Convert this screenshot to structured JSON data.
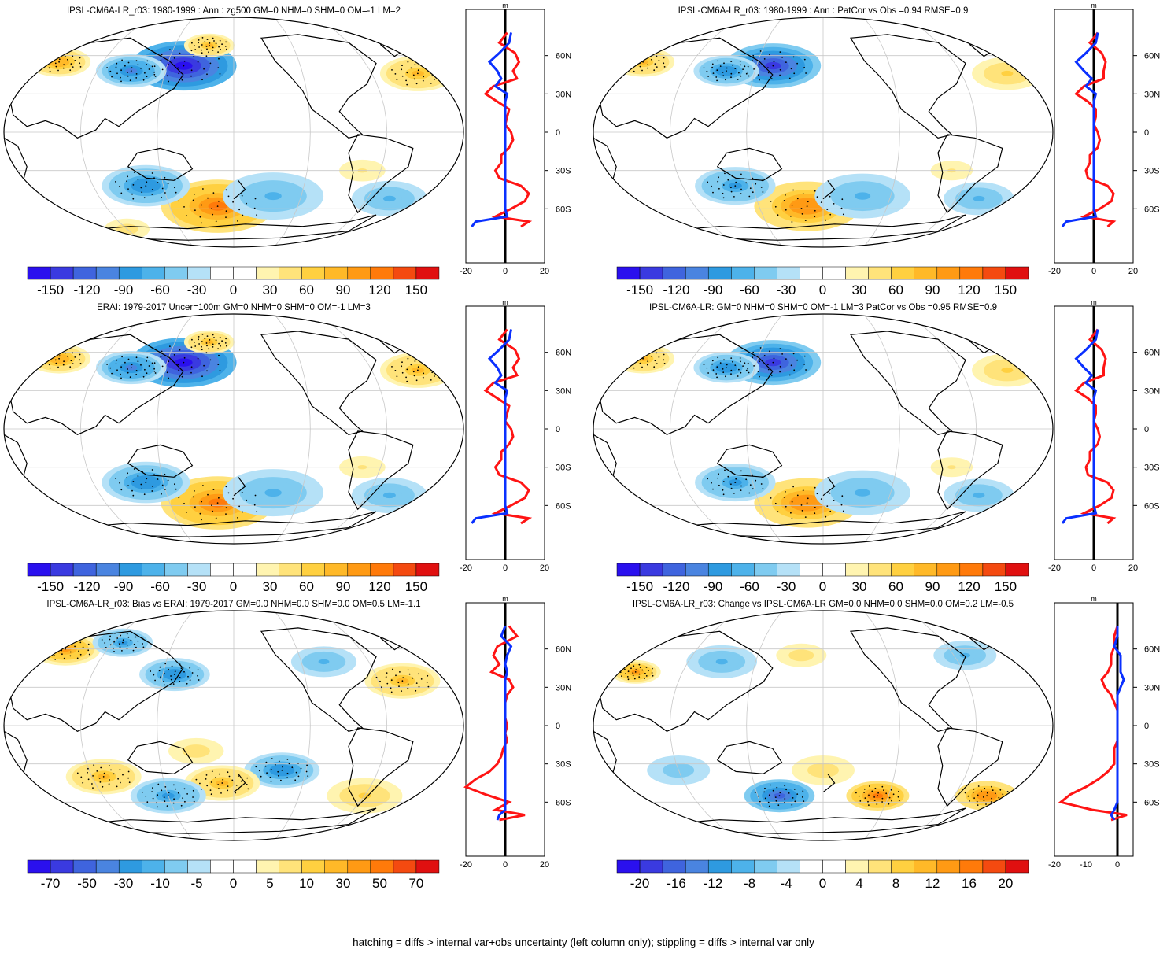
{
  "figure": {
    "footnote": "hatching = diffs > internal var+obs uncertainty (left column only); stippling = diffs > internal var only",
    "colors": {
      "negative": [
        "#2a10ee",
        "#3a3ae0",
        "#3f64de",
        "#4a84e0",
        "#2e9ae0",
        "#4db2ea",
        "#7fcbf0",
        "#b5e1f7"
      ],
      "neutral": "#ffffff",
      "positive": [
        "#fff4b0",
        "#ffe37a",
        "#ffd040",
        "#ffb928",
        "#ff9a14",
        "#ff7a0a",
        "#f44a10",
        "#e01010"
      ],
      "profile_ensemble": "#0a30ff",
      "profile_anomaly": "#ff1414",
      "profile_zero": "#000000"
    }
  },
  "chart_data": [
    {
      "type": "heatmap",
      "panel": "top-left",
      "title": "IPSL-CM6A-LR_r03: 1980-1999 : Ann : zg500 GM=0 NHM=0 SHM=0 OM=-1 LM=2",
      "colorbar_labels": [
        "-150",
        "-120",
        "-90",
        "-60",
        "-30",
        "0",
        "30",
        "60",
        "90",
        "120",
        "150"
      ],
      "colorbar_range": [
        -150,
        150
      ],
      "stippled": true,
      "blobs": [
        [
          -45,
          52,
          42,
          -1.4
        ],
        [
          -90,
          48,
          28,
          -0.8
        ],
        [
          -160,
          55,
          25,
          0.7
        ],
        [
          160,
          46,
          30,
          0.6
        ],
        [
          -25,
          68,
          20,
          0.6
        ],
        [
          -15,
          -58,
          45,
          1.0
        ],
        [
          -75,
          -42,
          35,
          -0.7
        ],
        [
          35,
          -50,
          40,
          -0.5
        ],
        [
          140,
          -52,
          30,
          -0.5
        ],
        [
          105,
          -30,
          22,
          0.3
        ],
        [
          -120,
          -76,
          18,
          0.4
        ]
      ],
      "profile": {
        "unit": "m",
        "xrange": [
          -20,
          20
        ],
        "x_ticks": [
          "-20",
          "0",
          "20"
        ],
        "lat_ticks": [
          "60N",
          "30N",
          "0",
          "30S",
          "60S"
        ],
        "lat": [
          78,
          70,
          62,
          55,
          48,
          42,
          36,
          30,
          24,
          18,
          12,
          6,
          0,
          -6,
          -12,
          -18,
          -24,
          -30,
          -36,
          -42,
          -48,
          -54,
          -60,
          -66,
          -70,
          -74
        ],
        "ensemble": [
          3,
          2,
          -3,
          -8,
          -4,
          -2,
          -5,
          1,
          0,
          0,
          0,
          0,
          0,
          0,
          0,
          0,
          0,
          0,
          0,
          0,
          0,
          0,
          0,
          1,
          -15,
          -17
        ],
        "anomaly": [
          1,
          -3,
          5,
          7,
          4,
          6,
          -6,
          -10,
          -4,
          2,
          1,
          0,
          3,
          4,
          2,
          -2,
          -2,
          -5,
          -3,
          8,
          12,
          10,
          3,
          -5,
          12,
          8
        ]
      }
    },
    {
      "type": "heatmap",
      "panel": "top-right",
      "title": "IPSL-CM6A-LR_r03: 1980-1999 : Ann : PatCor vs Obs =0.94 RMSE=0.9",
      "colorbar_labels": [
        "-150",
        "-120",
        "-90",
        "-60",
        "-30",
        "0",
        "30",
        "60",
        "90",
        "120",
        "150"
      ],
      "colorbar_range": [
        -150,
        150
      ],
      "stippled": true,
      "blobs": [
        [
          -45,
          52,
          38,
          -1.2
        ],
        [
          -85,
          48,
          26,
          -0.7
        ],
        [
          -165,
          55,
          25,
          0.6
        ],
        [
          160,
          46,
          28,
          0.5
        ],
        [
          -15,
          -58,
          42,
          0.9
        ],
        [
          -75,
          -42,
          32,
          -0.6
        ],
        [
          35,
          -50,
          38,
          -0.5
        ],
        [
          140,
          -52,
          28,
          -0.5
        ],
        [
          105,
          -30,
          20,
          0.3
        ]
      ],
      "profile": {
        "unit": "m",
        "xrange": [
          -20,
          20
        ],
        "x_ticks": [
          "-20",
          "0",
          "20"
        ],
        "lat_ticks": [
          "60N",
          "30N",
          "0",
          "30S",
          "60S"
        ],
        "lat": [
          78,
          70,
          62,
          55,
          48,
          42,
          36,
          30,
          24,
          18,
          12,
          6,
          0,
          -6,
          -12,
          -18,
          -24,
          -30,
          -36,
          -42,
          -48,
          -54,
          -60,
          -66,
          -70,
          -74
        ],
        "ensemble": [
          2,
          1,
          -4,
          -9,
          -5,
          -1,
          -4,
          1,
          0,
          0,
          0,
          0,
          0,
          0,
          0,
          0,
          0,
          0,
          0,
          0,
          0,
          0,
          0,
          1,
          -14,
          -16
        ],
        "anomaly": [
          2,
          -2,
          4,
          6,
          5,
          5,
          -5,
          -9,
          -3,
          1,
          1,
          0,
          2,
          3,
          2,
          -2,
          -2,
          -4,
          -3,
          7,
          10,
          9,
          3,
          -5,
          10,
          7
        ]
      }
    },
    {
      "type": "heatmap",
      "panel": "middle-left",
      "title": "ERAI: 1979-2017 Uncer=100m GM=0 NHM=0 SHM=0 OM=-1 LM=3",
      "colorbar_labels": [
        "-150",
        "-120",
        "-90",
        "-60",
        "-30",
        "0",
        "30",
        "60",
        "90",
        "120",
        "150"
      ],
      "colorbar_range": [
        -150,
        150
      ],
      "stippled": true,
      "blobs": [
        [
          -45,
          52,
          42,
          -1.4
        ],
        [
          -90,
          48,
          28,
          -0.8
        ],
        [
          -160,
          55,
          25,
          0.7
        ],
        [
          160,
          46,
          30,
          0.6
        ],
        [
          -25,
          68,
          20,
          0.6
        ],
        [
          -15,
          -58,
          45,
          1.0
        ],
        [
          -75,
          -42,
          35,
          -0.7
        ],
        [
          35,
          -50,
          40,
          -0.5
        ],
        [
          140,
          -52,
          30,
          -0.5
        ],
        [
          105,
          -30,
          22,
          0.3
        ]
      ],
      "profile": {
        "unit": "m",
        "xrange": [
          -20,
          20
        ],
        "x_ticks": [
          "-20",
          "0",
          "20"
        ],
        "lat_ticks": [
          "60N",
          "30N",
          "0",
          "30S",
          "60S"
        ],
        "lat": [
          78,
          70,
          62,
          55,
          48,
          42,
          36,
          30,
          24,
          18,
          12,
          6,
          0,
          -6,
          -12,
          -18,
          -24,
          -30,
          -36,
          -42,
          -48,
          -54,
          -60,
          -66,
          -70,
          -74
        ],
        "ensemble": [
          3,
          2,
          -3,
          -8,
          -4,
          -2,
          -5,
          1,
          0,
          0,
          0,
          0,
          0,
          0,
          0,
          0,
          0,
          0,
          0,
          0,
          0,
          0,
          0,
          1,
          -15,
          -17
        ],
        "anomaly": [
          1,
          -3,
          5,
          7,
          4,
          6,
          -6,
          -10,
          -4,
          2,
          1,
          0,
          3,
          4,
          2,
          -2,
          -2,
          -5,
          -3,
          8,
          12,
          10,
          3,
          -5,
          12,
          8
        ]
      }
    },
    {
      "type": "heatmap",
      "panel": "middle-right",
      "title": "IPSL-CM6A-LR: GM=0 NHM=0 SHM=0 OM=-1 LM=3 PatCor vs Obs =0.95 RMSE=0.9",
      "colorbar_labels": [
        "-150",
        "-120",
        "-90",
        "-60",
        "-30",
        "0",
        "30",
        "60",
        "90",
        "120",
        "150"
      ],
      "colorbar_range": [
        -150,
        150
      ],
      "stippled": true,
      "blobs": [
        [
          -45,
          52,
          38,
          -1.2
        ],
        [
          -85,
          48,
          26,
          -0.7
        ],
        [
          -165,
          55,
          25,
          0.6
        ],
        [
          160,
          46,
          28,
          0.5
        ],
        [
          -15,
          -58,
          42,
          0.9
        ],
        [
          -75,
          -42,
          32,
          -0.6
        ],
        [
          35,
          -50,
          38,
          -0.5
        ],
        [
          140,
          -52,
          28,
          -0.5
        ],
        [
          105,
          -30,
          20,
          0.3
        ]
      ],
      "profile": {
        "unit": "m",
        "xrange": [
          -20,
          20
        ],
        "x_ticks": [
          "-20",
          "0",
          "20"
        ],
        "lat_ticks": [
          "60N",
          "30N",
          "0",
          "30S",
          "60S"
        ],
        "lat": [
          78,
          70,
          62,
          55,
          48,
          42,
          36,
          30,
          24,
          18,
          12,
          6,
          0,
          -6,
          -12,
          -18,
          -24,
          -30,
          -36,
          -42,
          -48,
          -54,
          -60,
          -66,
          -70,
          -74
        ],
        "ensemble": [
          2,
          1,
          -4,
          -9,
          -5,
          -1,
          -4,
          1,
          0,
          0,
          0,
          0,
          0,
          0,
          0,
          0,
          0,
          0,
          0,
          0,
          0,
          0,
          0,
          1,
          -14,
          -16
        ],
        "anomaly": [
          2,
          -2,
          4,
          6,
          5,
          5,
          -5,
          -9,
          -3,
          1,
          1,
          0,
          2,
          3,
          2,
          -2,
          -2,
          -4,
          -3,
          7,
          10,
          9,
          3,
          -5,
          10,
          7
        ]
      }
    },
    {
      "type": "heatmap",
      "panel": "bottom-left",
      "title": "IPSL-CM6A-LR_r03: Bias vs ERAI: 1979-2017 GM=0.0 NHM=0.0 SHM=0.0 OM=0.5 LM=-1.1",
      "colorbar_labels": [
        "-70",
        "-50",
        "-30",
        "-10",
        "-5",
        "0",
        "5",
        "10",
        "30",
        "50",
        "70"
      ],
      "colorbar_range": [
        -70,
        70
      ],
      "stippled": true,
      "blobs": [
        [
          -160,
          60,
          28,
          0.8
        ],
        [
          140,
          35,
          30,
          0.6
        ],
        [
          -50,
          40,
          28,
          -0.7
        ],
        [
          -110,
          65,
          24,
          -0.6
        ],
        [
          40,
          -35,
          30,
          -0.7
        ],
        [
          -10,
          -45,
          30,
          0.6
        ],
        [
          -110,
          -40,
          30,
          0.6
        ],
        [
          120,
          -55,
          30,
          0.5
        ],
        [
          -60,
          -55,
          30,
          -0.6
        ],
        [
          80,
          50,
          26,
          -0.5
        ],
        [
          -30,
          -20,
          22,
          0.4
        ]
      ],
      "profile": {
        "unit": "m",
        "xrange": [
          -20,
          20
        ],
        "x_ticks": [
          "-20",
          "0",
          "20"
        ],
        "lat_ticks": [
          "60N",
          "30N",
          "0",
          "30S",
          "60S"
        ],
        "lat": [
          78,
          70,
          62,
          55,
          48,
          42,
          36,
          30,
          24,
          18,
          12,
          6,
          0,
          -6,
          -12,
          -18,
          -24,
          -30,
          -36,
          -42,
          -48,
          -54,
          -60,
          -66,
          -70,
          -74
        ],
        "ensemble": [
          0,
          -2,
          3,
          1,
          0,
          1,
          0,
          0,
          0,
          0,
          0,
          0,
          0,
          0,
          0,
          0,
          0,
          0,
          0,
          0,
          0,
          0,
          0,
          0,
          -3,
          -4
        ],
        "anomaly": [
          2,
          6,
          -4,
          -6,
          -3,
          -7,
          2,
          4,
          1,
          0,
          0,
          0,
          1,
          0,
          1,
          -1,
          -2,
          -4,
          -8,
          -15,
          -20,
          -10,
          2,
          -5,
          10,
          -3
        ]
      }
    },
    {
      "type": "heatmap",
      "panel": "bottom-right",
      "title": "IPSL-CM6A-LR_r03: Change vs IPSL-CM6A-LR GM=0.0 NHM=0.0 SHM=0.0 OM=0.2 LM=-0.5",
      "colorbar_labels": [
        "-20",
        "-16",
        "-12",
        "-8",
        "-4",
        "0",
        "4",
        "8",
        "12",
        "16",
        "20"
      ],
      "colorbar_range": [
        -20,
        20
      ],
      "stippled": true,
      "blobs": [
        [
          -160,
          42,
          20,
          0.8
        ],
        [
          -40,
          -55,
          28,
          -1.0
        ],
        [
          150,
          -55,
          25,
          0.9
        ],
        [
          50,
          -55,
          25,
          1.0
        ],
        [
          0,
          -35,
          25,
          0.4
        ],
        [
          -90,
          50,
          28,
          -0.5
        ],
        [
          130,
          55,
          25,
          -0.5
        ],
        [
          -120,
          -35,
          25,
          -0.4
        ],
        [
          -20,
          55,
          20,
          0.4
        ]
      ],
      "profile": {
        "unit": "m",
        "xrange": [
          -20,
          5
        ],
        "x_ticks": [
          "-20",
          "-10",
          "0"
        ],
        "lat_ticks": [
          "60N",
          "30N",
          "0",
          "30S",
          "60S"
        ],
        "lat": [
          78,
          70,
          62,
          55,
          48,
          42,
          36,
          30,
          24,
          18,
          12,
          6,
          0,
          -6,
          -12,
          -18,
          -24,
          -30,
          -36,
          -42,
          -48,
          -54,
          -60,
          -66,
          -70,
          -74
        ],
        "ensemble": [
          0,
          0,
          -1,
          1,
          1,
          1,
          2,
          1,
          0,
          0,
          0,
          0,
          0,
          0,
          0,
          0,
          0,
          0,
          0,
          0,
          0,
          0,
          0,
          -1,
          -2,
          -1
        ],
        "anomaly": [
          0,
          -1,
          -1,
          -2,
          -2,
          -3,
          -5,
          -4,
          -2,
          -1,
          0,
          0,
          0,
          0,
          0,
          -1,
          -1,
          -1,
          -3,
          -6,
          -10,
          -15,
          -18,
          -8,
          3,
          -2
        ]
      }
    }
  ]
}
